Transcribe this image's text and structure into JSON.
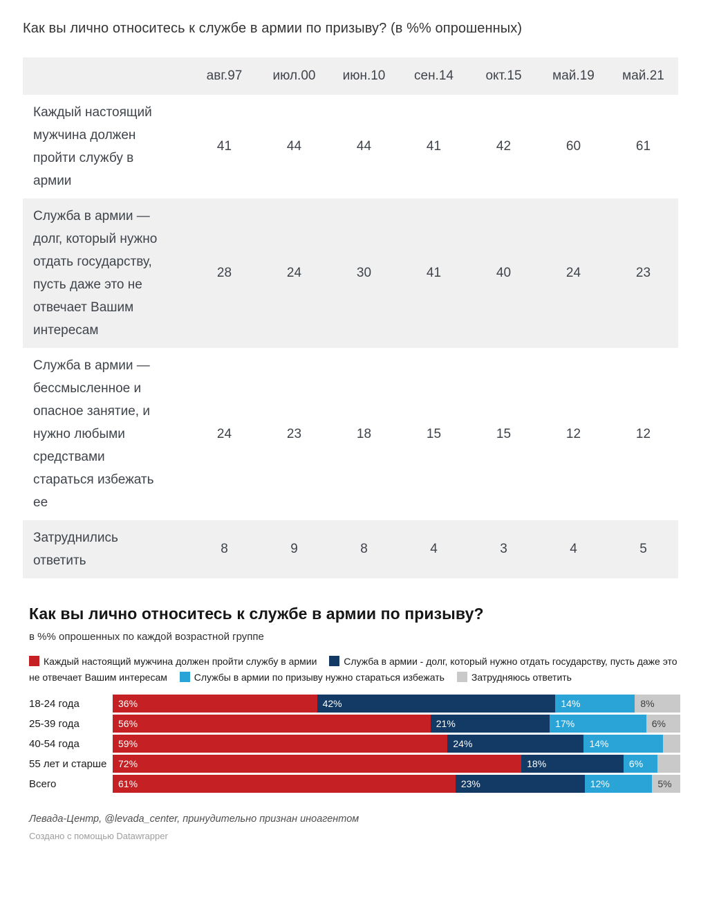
{
  "page_title": "Как вы лично относитесь к службе в армии по призыву? (в %% опрошенных)",
  "table": {
    "columns": [
      "авг.97",
      "июл.00",
      "июн.10",
      "сен.14",
      "окт.15",
      "май.19",
      "май.21"
    ],
    "rows": [
      {
        "label": "Каждый настоящий мужчина должен пройти службу в армии",
        "values": [
          41,
          44,
          44,
          41,
          42,
          60,
          61
        ]
      },
      {
        "label": "Служба в армии — долг, который нужно отдать государству, пусть даже это не отвечает Вашим интересам",
        "values": [
          28,
          24,
          30,
          41,
          40,
          24,
          23
        ]
      },
      {
        "label": "Служба в армии — бессмысленное и опасное занятие, и нужно любыми средствами стараться избежать ее",
        "values": [
          24,
          23,
          18,
          15,
          15,
          12,
          12
        ]
      },
      {
        "label": "Затруднились ответить",
        "values": [
          8,
          9,
          8,
          4,
          3,
          4,
          5
        ]
      }
    ]
  },
  "chart_data": {
    "type": "bar",
    "stacked": true,
    "orientation": "horizontal",
    "title": "Как вы лично относитесь к службе в армии по призыву?",
    "subtitle": "в %% опрошенных по каждой возрастной группе",
    "categories": [
      "18-24 года",
      "25-39 года",
      "40-54 года",
      "55 лет и старше",
      "Всего"
    ],
    "series": [
      {
        "name": "Каждый настоящий мужчина должен пройти службу в армии",
        "color": "#c52023",
        "values": [
          36,
          56,
          59,
          72,
          61
        ]
      },
      {
        "name": "Служба в армии - долг, который нужно отдать государству, пусть даже это не отвечает Вашим интересам",
        "color": "#123a64",
        "values": [
          42,
          21,
          24,
          18,
          23
        ]
      },
      {
        "name": "Службы в армии по призыву нужно стараться избежать",
        "color": "#2aa3d7",
        "values": [
          14,
          17,
          14,
          6,
          12
        ]
      },
      {
        "name": "Затрудняюсь ответить",
        "color": "#c9c9c9",
        "values": [
          8,
          6,
          3,
          4,
          5
        ]
      }
    ],
    "bar_labels": [
      [
        "36%",
        "42%",
        "14%",
        "8%"
      ],
      [
        "56%",
        "21%",
        "17%",
        "6%"
      ],
      [
        "59%",
        "24%",
        "14%",
        ""
      ],
      [
        "72%",
        "18%",
        "6%",
        ""
      ],
      [
        "61%",
        "23%",
        "12%",
        "5%"
      ]
    ],
    "value_suffix": "%",
    "xlim": [
      0,
      100
    ],
    "grid": false,
    "legend_position": "top"
  },
  "footer": {
    "source": "Левада-Центр, @levada_center, принудительно признан иноагентом",
    "credit": "Создано с помощью Datawrapper"
  },
  "colors": {
    "stripe_bg": "#f0f0f0",
    "table_text": "#3f444a",
    "series_red": "#c52023",
    "series_navy": "#123a64",
    "series_cyan": "#2aa3d7",
    "series_gray": "#c9c9c9"
  }
}
